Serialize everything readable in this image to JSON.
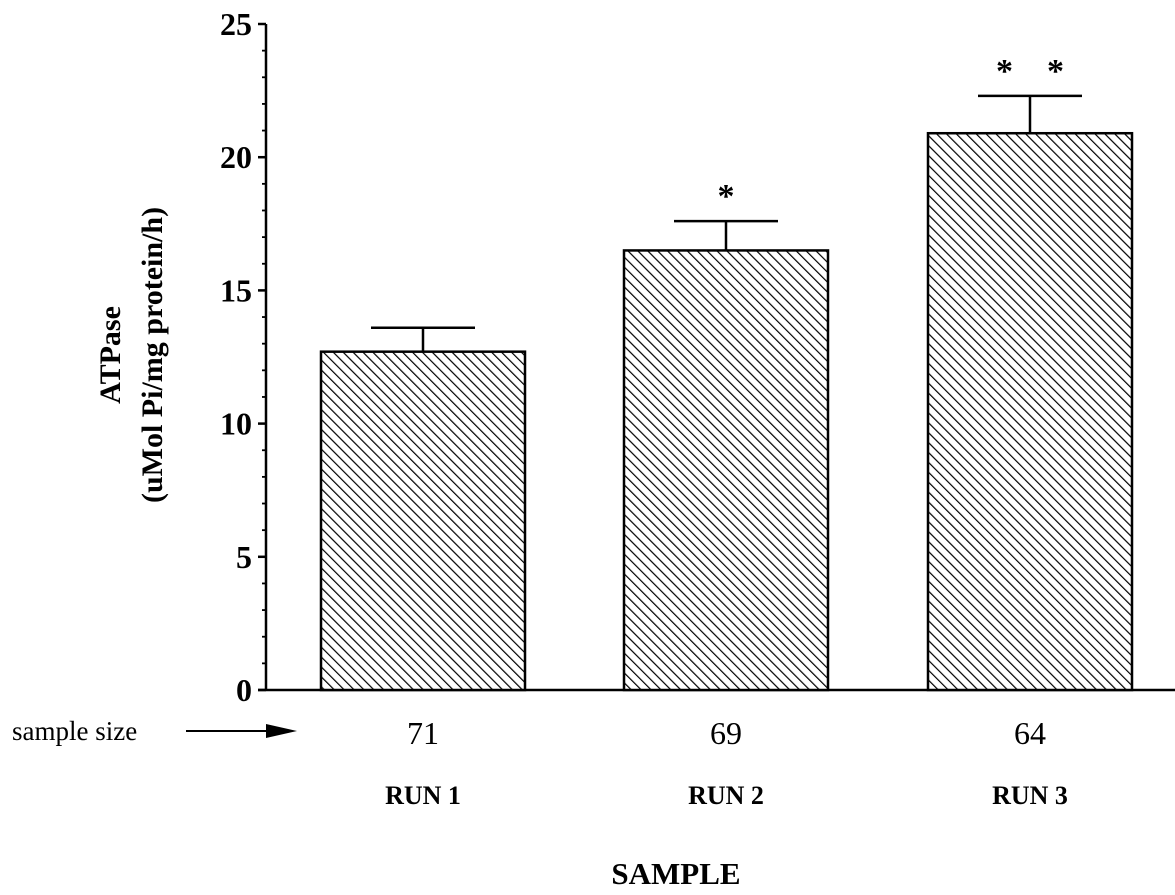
{
  "chart_data": {
    "type": "bar",
    "categories": [
      "RUN 1",
      "RUN 2",
      "RUN 3"
    ],
    "values": [
      12.7,
      16.5,
      20.9
    ],
    "error": [
      0.9,
      1.1,
      1.4
    ],
    "sample_sizes": [
      "71",
      "69",
      "64"
    ],
    "significance": [
      "",
      "*",
      "* *"
    ],
    "yticks": [
      0,
      5,
      10,
      15,
      20,
      25
    ],
    "ylim": [
      0,
      25
    ],
    "ylabel_line1": "ATPase",
    "ylabel_line2": "(uMol Pi/mg protein/h)",
    "xlabel": "SAMPLE",
    "sample_size_label": "sample size",
    "grid": false,
    "pattern": "diagonal-hatch"
  }
}
